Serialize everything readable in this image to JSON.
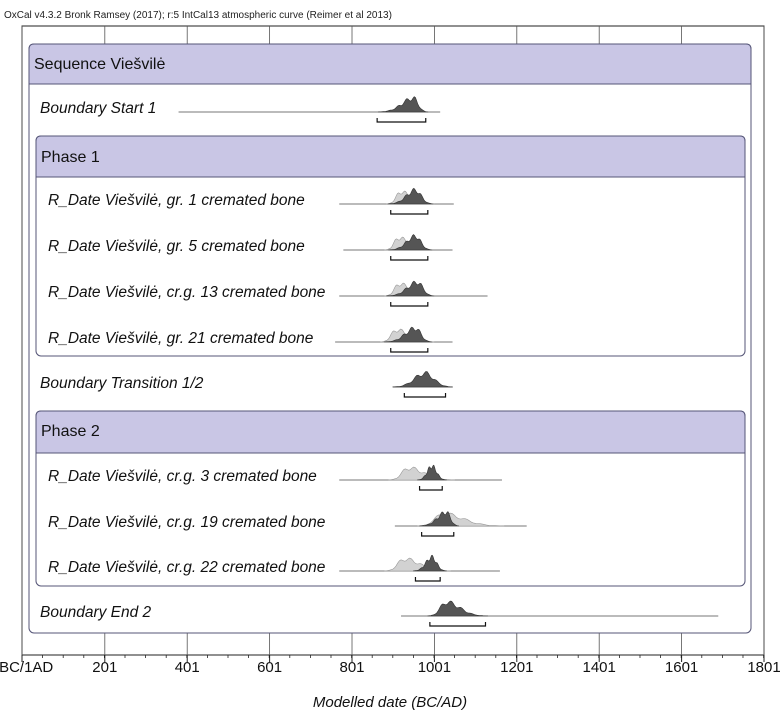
{
  "credit": "OxCal v4.3.2 Bronk Ramsey (2017); r:5 IntCal13 atmospheric curve (Reimer et al 2013)",
  "chart_data": {
    "type": "oxcal_multiplot",
    "xlabel": "Modelled date (BC/AD)",
    "xlim": [
      0,
      1801
    ],
    "ticks": [
      0,
      201,
      401,
      601,
      801,
      1001,
      1201,
      1401,
      1601,
      1801
    ],
    "tick_labels": [
      "1BC/1AD",
      "201",
      "401",
      "601",
      "801",
      "1001",
      "1201",
      "1401",
      "1601",
      "1801"
    ],
    "grid": true,
    "colors": {
      "posterior": "#555555",
      "prior": "#d2d2d2",
      "header": "#c9c6e5",
      "box_border": "#555577"
    },
    "rows": [
      {
        "kind": "sequence",
        "label": "Sequence Viešvilė"
      },
      {
        "kind": "item",
        "label": "Boundary Start 1",
        "range_line": [
          380,
          1015
        ],
        "hpd": [
          862,
          980
        ],
        "posterior_peak": 950,
        "posterior_range": [
          865,
          985
        ]
      },
      {
        "kind": "phase",
        "label": "Phase 1"
      },
      {
        "kind": "item",
        "label": "R_Date Viešvilė, gr. 1 cremated bone",
        "range_line": [
          770,
          1048
        ],
        "hpd": [
          895,
          985
        ],
        "prior_range": [
          885,
          1000
        ],
        "posterior_peak": 955,
        "posterior_range": [
          888,
          998
        ]
      },
      {
        "kind": "item",
        "label": "R_Date Viešvilė, gr. 5 cremated bone",
        "range_line": [
          780,
          1045
        ],
        "hpd": [
          895,
          985
        ],
        "prior_range": [
          880,
          995
        ],
        "posterior_peak": 955,
        "posterior_range": [
          890,
          995
        ]
      },
      {
        "kind": "item",
        "label": "R_Date Viešvilė, cr.g. 13 cremated bone",
        "range_line": [
          770,
          1130
        ],
        "hpd": [
          895,
          985
        ],
        "prior_range": [
          880,
          1000
        ],
        "posterior_peak": 960,
        "posterior_range": [
          885,
          1000
        ]
      },
      {
        "kind": "item",
        "label": "R_Date Viešvilė, gr. 21 cremated bone",
        "range_line": [
          760,
          1045
        ],
        "hpd": [
          895,
          985
        ],
        "prior_range": [
          870,
          1000
        ],
        "posterior_peak": 955,
        "posterior_range": [
          880,
          995
        ]
      },
      {
        "kind": "item",
        "label": "Boundary Transition 1/2",
        "range_line": [
          900,
          1045
        ],
        "hpd": [
          928,
          1028
        ],
        "posterior_peak": 978,
        "posterior_range": [
          900,
          1045
        ]
      },
      {
        "kind": "phase",
        "label": "Phase 2"
      },
      {
        "kind": "item",
        "label": "R_Date Viešvilė, cr.g. 3 cremated bone",
        "range_line": [
          770,
          1165
        ],
        "hpd": [
          965,
          1020
        ],
        "prior_range": [
          890,
          1050
        ],
        "posterior_peak": 995,
        "posterior_range": [
          960,
          1030
        ]
      },
      {
        "kind": "item",
        "label": "R_Date Viešvilė, cr.g. 19 cremated bone",
        "range_line": [
          905,
          1225
        ],
        "hpd": [
          970,
          1048
        ],
        "prior_range": [
          960,
          1170
        ],
        "posterior_peak": 1030,
        "posterior_range": [
          965,
          1060
        ]
      },
      {
        "kind": "item",
        "label": "R_Date Viešvilė, cr.g. 22 cremated bone",
        "range_line": [
          770,
          1160
        ],
        "hpd": [
          955,
          1015
        ],
        "prior_range": [
          880,
          1040
        ],
        "posterior_peak": 995,
        "posterior_range": [
          950,
          1030
        ]
      },
      {
        "kind": "item",
        "label": "Boundary End 2",
        "range_line": [
          920,
          1690
        ],
        "hpd": [
          990,
          1125
        ],
        "posterior_peak": 1030,
        "posterior_range": [
          985,
          1130
        ]
      }
    ]
  }
}
